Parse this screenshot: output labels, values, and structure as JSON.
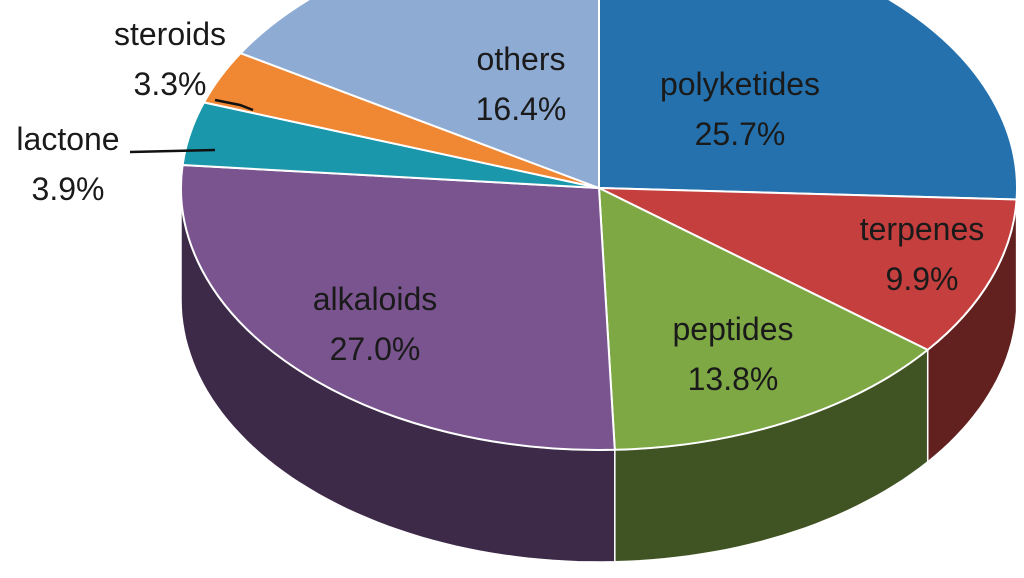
{
  "chart_data": {
    "type": "pie",
    "title": "",
    "style": "3d",
    "slices": [
      {
        "label": "polyketides",
        "value": 25.7,
        "display": "25.7%",
        "color": "#2471ad"
      },
      {
        "label": "terpenes",
        "value": 9.9,
        "display": "9.9%",
        "color": "#c43f3e"
      },
      {
        "label": "peptides",
        "value": 13.8,
        "display": "13.8%",
        "color": "#7ea844"
      },
      {
        "label": "alkaloids",
        "value": 27.0,
        "display": "27.0%",
        "color": "#7a548f"
      },
      {
        "label": "lactone",
        "value": 3.9,
        "display": "3.9%",
        "color": "#1a97aa"
      },
      {
        "label": "steroids",
        "value": 3.3,
        "display": "3.3%",
        "color": "#f08733"
      },
      {
        "label": "others",
        "value": 16.4,
        "display": "16.4%",
        "color": "#8eabd4"
      }
    ]
  }
}
